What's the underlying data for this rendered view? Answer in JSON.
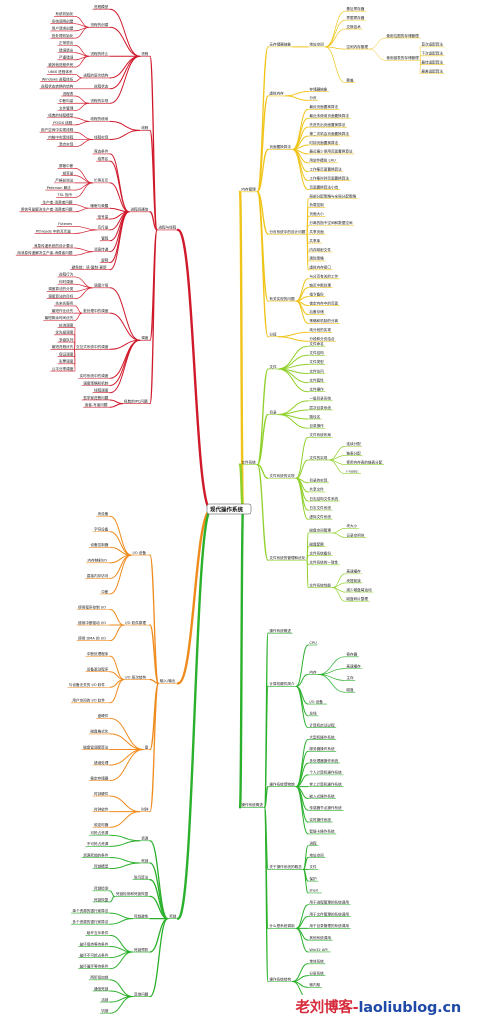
{
  "root": "现代操作系统",
  "colors": {
    "red": "#d0192b",
    "yellow": "#f0c419",
    "orange": "#ef8a1c",
    "green": "#2bb02c",
    "lime": "#8fd12a",
    "text": "#222222"
  },
  "watermark": {
    "prefix": "老刘博客-",
    "domain": "laoliublog.cn",
    "prefix_color": "#d62b3a",
    "domain_color": "#1f4aa8"
  },
  "branches": [
    {
      "label": "进程与线程",
      "color": "#d0192b",
      "children": [
        {
          "label": "进程",
          "children": [
            {
              "label": "进程模型"
            },
            {
              "label": "进程的创建",
              "children": [
                {
                  "label": "系统初始化"
                },
                {
                  "label": "系统调用创建"
                },
                {
                  "label": "用户请求创建"
                },
                {
                  "label": "批处理初始化"
                }
              ]
            },
            {
              "label": "进程的终止",
              "children": [
                {
                  "label": "正常退出"
                },
                {
                  "label": "错误退出"
                },
                {
                  "label": "严重错误"
                },
                {
                  "label": "被其他进程杀死"
                }
              ]
            },
            {
              "label": "进程的层次结构",
              "children": [
                {
                  "label": "UNIX 进程体系"
                },
                {
                  "label": "Windows 进程体系"
                }
              ]
            },
            {
              "label": "进程状态",
              "children": [
                {
                  "label": "进程状态转换的结构"
                }
              ]
            },
            {
              "label": "进程的实现",
              "children": [
                {
                  "label": "进程表"
                },
                {
                  "label": "中断向量"
                },
                {
                  "label": "文件管理"
                }
              ]
            }
          ]
        },
        {
          "label": "线程",
          "children": [
            {
              "label": "线程的使用",
              "children": [
                {
                  "label": "经典的线程模型"
                },
                {
                  "label": "POSIX 线程"
                }
              ]
            },
            {
              "label": "线程实现",
              "children": [
                {
                  "label": "用户空间中实现线程"
                },
                {
                  "label": "内核中实现线程"
                },
                {
                  "label": "混合实现"
                }
              ]
            }
          ]
        },
        {
          "label": "进程间通信",
          "children": [
            {
              "label": "竞态条件"
            },
            {
              "label": "临界区"
            },
            {
              "label": "忙等互斥",
              "children": [
                {
                  "label": "屏蔽中断"
                },
                {
                  "label": "锁变量"
                },
                {
                  "label": "严格轮询法"
                },
                {
                  "label": "Peterson 解法"
                },
                {
                  "label": "TSL 指令"
                }
              ]
            },
            {
              "label": "睡眠与唤醒",
              "children": [
                {
                  "label": "生产者-消费者问题"
                },
                {
                  "label": "用信号量解决生产者-消费者问题"
                }
              ]
            },
            {
              "label": "信号量"
            },
            {
              "label": "互斥量",
              "children": [
                {
                  "label": "Futexes"
                },
                {
                  "label": "Pthreads 中的互斥量"
                }
              ]
            },
            {
              "label": "管程"
            },
            {
              "label": "消息传递",
              "children": [
                {
                  "label": "消息传递系统的设计要点"
                },
                {
                  "label": "用消息传递解决生产者-消费者问题"
                }
              ]
            },
            {
              "label": "屏障"
            },
            {
              "label": "避免锁：读-复制-更新"
            }
          ]
        },
        {
          "label": "调度",
          "children": [
            {
              "label": "调度介绍",
              "children": [
                {
                  "label": "进程行为"
                },
                {
                  "label": "何时调度"
                },
                {
                  "label": "调度算法的分类"
                },
                {
                  "label": "调度算法的目标"
                }
              ]
            },
            {
              "label": "批处理中的调度",
              "children": [
                {
                  "label": "先来先服务"
                },
                {
                  "label": "最短作业优先"
                },
                {
                  "label": "最短剩余时间优先"
                }
              ]
            },
            {
              "label": "交互式系统中的调度",
              "children": [
                {
                  "label": "轮询调度"
                },
                {
                  "label": "优先级调度"
                },
                {
                  "label": "多级队列"
                },
                {
                  "label": "最短进程优先"
                },
                {
                  "label": "保证调度"
                },
                {
                  "label": "彩票调度"
                },
                {
                  "label": "公平分享调度"
                }
              ]
            },
            {
              "label": "实时系统中的调度"
            },
            {
              "label": "调度策略和机制"
            },
            {
              "label": "线程调度"
            }
          ]
        },
        {
          "label": "经典的IPC问题",
          "children": [
            {
              "label": "哲学家进餐问题"
            },
            {
              "label": "读者-写者问题"
            }
          ]
        }
      ]
    },
    {
      "label": "输入/输出",
      "color": "#ef8a1c",
      "children": [
        {
          "label": "I/O 设备",
          "children": [
            {
              "label": "块设备"
            },
            {
              "label": "字符设备"
            },
            {
              "label": "设备控制器"
            },
            {
              "label": "内存映射I/O"
            },
            {
              "label": "直接内存访问"
            },
            {
              "label": "中断"
            }
          ]
        },
        {
          "label": "I/O 软件原理",
          "children": [
            {
              "label": "使用程序控制 I/O"
            },
            {
              "label": "使用中断驱动 I/O"
            },
            {
              "label": "使用 DMA 的 I/O"
            }
          ]
        },
        {
          "label": "I/O 层次结构",
          "children": [
            {
              "label": "中断处理程序"
            },
            {
              "label": "设备驱动程序"
            },
            {
              "label": "与设备无关的 I/O 软件"
            },
            {
              "label": "用户空间的 I/O 软件"
            }
          ]
        },
        {
          "label": "盘",
          "children": [
            {
              "label": "盘硬件"
            },
            {
              "label": "磁盘格式化"
            },
            {
              "label": "磁盘臂调度算法"
            },
            {
              "label": "错误处理"
            },
            {
              "label": "稳定存储器"
            }
          ]
        },
        {
          "label": "时钟",
          "children": [
            {
              "label": "时钟硬件"
            },
            {
              "label": "时钟软件"
            },
            {
              "label": "软定时器"
            }
          ]
        }
      ]
    },
    {
      "label": "死锁",
      "color": "#2bb02c",
      "children": [
        {
          "label": "资源",
          "children": [
            {
              "label": "可抢占资源"
            },
            {
              "label": "不可抢占资源"
            }
          ]
        },
        {
          "label": "死锁",
          "children": [
            {
              "label": "资源死锁的条件"
            },
            {
              "label": "死锁模型"
            }
          ]
        },
        {
          "label": "鸵鸟算法"
        },
        {
          "label": "死锁检测和死锁恢复",
          "children": [
            {
              "label": "死锁检测"
            },
            {
              "label": "死锁恢复"
            }
          ]
        },
        {
          "label": "死锁避免",
          "children": [
            {
              "label": "单个资源的银行家算法"
            },
            {
              "label": "多个资源的银行家算法"
            }
          ]
        },
        {
          "label": "死锁预防",
          "children": [
            {
              "label": "破坏互斥条件"
            },
            {
              "label": "破坏保持等待条件"
            },
            {
              "label": "破坏不可抢占条件"
            },
            {
              "label": "破坏循环等待条件"
            }
          ]
        },
        {
          "label": "其他问题",
          "children": [
            {
              "label": "两阶段加锁"
            },
            {
              "label": "通信死锁"
            },
            {
              "label": "活锁"
            },
            {
              "label": "饥饿"
            }
          ]
        }
      ]
    },
    {
      "label": "内存管理",
      "color": "#f0c419",
      "children": [
        {
          "label": "无存储器抽象",
          "children": [
            {
              "label": "地址空间",
              "children": [
                {
                  "label": "基址寄存器"
                },
                {
                  "label": "界限寄存器"
                },
                {
                  "label": "交换技术"
                },
                {
                  "label": "空闲内存管理",
                  "children": [
                    {
                      "label": "使用位图的存储管理"
                    },
                    {
                      "label": "使用链表的存储管理",
                      "children": [
                        {
                          "label": "首次适配算法"
                        },
                        {
                          "label": "下次适配算法"
                        },
                        {
                          "label": "最佳适配算法"
                        },
                        {
                          "label": "最差适配算法"
                        }
                      ]
                    }
                  ]
                },
                {
                  "label": "覆盖"
                }
              ]
            }
          ]
        },
        {
          "label": "虚拟内存",
          "children": [
            {
              "label": "存储器抽象"
            },
            {
              "label": "分页"
            }
          ]
        },
        {
          "label": "页面置换算法",
          "children": [
            {
              "label": "最优页面置换算法"
            },
            {
              "label": "最近未使用页面置换算法"
            },
            {
              "label": "先进先出页面置换算法"
            },
            {
              "label": "第二次机会页面置换算法"
            },
            {
              "label": "时钟页面置换算法"
            },
            {
              "label": "最近最少使用页面置换算法"
            },
            {
              "label": "用软件模拟 LRU"
            },
            {
              "label": "工作集页面置换算法"
            },
            {
              "label": "工作集时钟页面置换算法"
            },
            {
              "label": "页面置换算法小结"
            }
          ]
        },
        {
          "label": "分页系统中的设计问题",
          "children": [
            {
              "label": "局部分配策略与全局分配策略"
            },
            {
              "label": "负载控制"
            },
            {
              "label": "页面大小"
            },
            {
              "label": "分离的指令空间和数据空间"
            },
            {
              "label": "共享页面"
            },
            {
              "label": "共享库"
            },
            {
              "label": "内存映射文件"
            },
            {
              "label": "清除策略"
            },
            {
              "label": "虚拟内存接口"
            }
          ]
        },
        {
          "label": "有关实现的问题",
          "children": [
            {
              "label": "与分页有关的工作"
            },
            {
              "label": "缺页中断处理"
            },
            {
              "label": "指令备份"
            },
            {
              "label": "锁定内存中的页面"
            },
            {
              "label": "后备存储"
            },
            {
              "label": "策略和机制的分离"
            }
          ]
        },
        {
          "label": "分段",
          "children": [
            {
              "label": "纯分段的实现"
            },
            {
              "label": "分段和分页结合"
            }
          ]
        }
      ]
    },
    {
      "label": "文件系统",
      "color": "#8fd12a",
      "children": [
        {
          "label": "文件",
          "children": [
            {
              "label": "文件命名"
            },
            {
              "label": "文件结构"
            },
            {
              "label": "文件类型"
            },
            {
              "label": "文件访问"
            },
            {
              "label": "文件属性"
            },
            {
              "label": "文件操作"
            }
          ]
        },
        {
          "label": "目录",
          "children": [
            {
              "label": "一级目录系统"
            },
            {
              "label": "层次目录系统"
            },
            {
              "label": "路径名"
            },
            {
              "label": "目录操作"
            }
          ]
        },
        {
          "label": "文件系统的实现",
          "children": [
            {
              "label": "文件系统布局"
            },
            {
              "label": "文件的实现",
              "children": [
                {
                  "label": "连续分配"
                },
                {
                  "label": "链表分配"
                },
                {
                  "label": "使用内存表的链表分配"
                },
                {
                  "label": "i-node"
                }
              ]
            },
            {
              "label": "目录的实现"
            },
            {
              "label": "共享文件"
            },
            {
              "label": "日志结构文件系统"
            },
            {
              "label": "日志文件系统"
            },
            {
              "label": "虚拟文件系统"
            }
          ]
        },
        {
          "label": "文件系统的管理和优化",
          "children": [
            {
              "label": "磁盘空间管理",
              "children": [
                {
                  "label": "块大小"
                },
                {
                  "label": "记录空闲块"
                }
              ]
            },
            {
              "label": "磁盘配额"
            },
            {
              "label": "文件系统备份"
            },
            {
              "label": "文件系统的一致性"
            },
            {
              "label": "文件系统性能",
              "children": [
                {
                  "label": "高速缓存"
                },
                {
                  "label": "块提前读"
                },
                {
                  "label": "减少磁盘臂运动"
                },
                {
                  "label": "磁盘碎片整理"
                }
              ]
            }
          ]
        }
      ]
    },
    {
      "label": "操作系统概述",
      "color": "#2bb02c",
      "children": [
        {
          "label": "操作系统概述"
        },
        {
          "label": "计算机硬件简介",
          "children": [
            {
              "label": "CPU"
            },
            {
              "label": "内存",
              "children": [
                {
                  "label": "寄存器"
                },
                {
                  "label": "高速缓存"
                },
                {
                  "label": "主存"
                },
                {
                  "label": "磁盘"
                }
              ]
            },
            {
              "label": "I/O 设备"
            },
            {
              "label": "总线"
            },
            {
              "label": "计算机启动过程"
            }
          ]
        },
        {
          "label": "操作系统博物馆",
          "children": [
            {
              "label": "大型机操作系统"
            },
            {
              "label": "服务器操作系统"
            },
            {
              "label": "多处理器操作系统"
            },
            {
              "label": "个人计算机操作系统"
            },
            {
              "label": "掌上计算机操作系统"
            },
            {
              "label": "嵌入式操作系统"
            },
            {
              "label": "传感器节点操作系统"
            },
            {
              "label": "实时操作系统"
            },
            {
              "label": "智能卡操作系统"
            }
          ]
        },
        {
          "label": "关于操作系统的概念",
          "children": [
            {
              "label": "进程"
            },
            {
              "label": "地址空间"
            },
            {
              "label": "文件"
            },
            {
              "label": "保护"
            },
            {
              "label": "shell"
            }
          ]
        },
        {
          "label": "什么是系统调用",
          "children": [
            {
              "label": "用于进程管理的系统调用"
            },
            {
              "label": "用于文件管理的系统调用"
            },
            {
              "label": "用于目录管理的系统调用"
            },
            {
              "label": "其他系统调用"
            },
            {
              "label": "Win32 API"
            }
          ]
        },
        {
          "label": "操作系统结构",
          "children": [
            {
              "label": "单体系统"
            },
            {
              "label": "分层系统"
            },
            {
              "label": "微内核"
            },
            {
              "label": "客户-服务器模式"
            }
          ]
        }
      ]
    }
  ]
}
